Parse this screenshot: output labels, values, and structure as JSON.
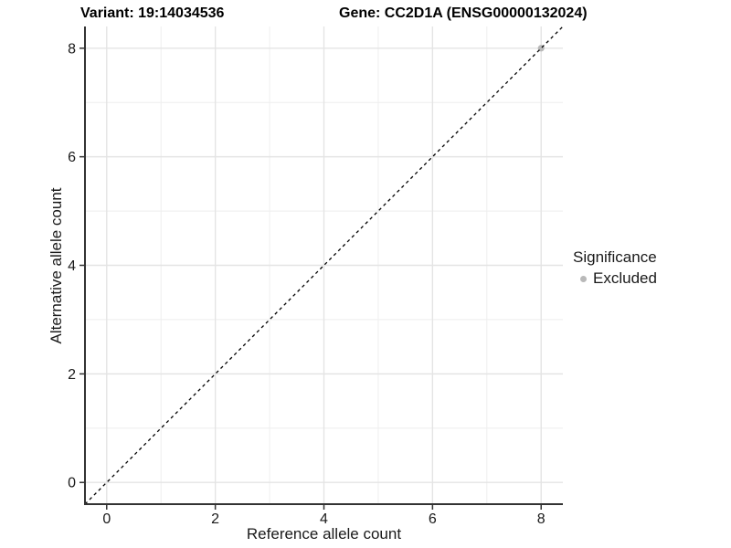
{
  "header": {
    "title_left": "Variant: 19:14034536",
    "title_right": "Gene: CC2D1A (ENSG00000132024)"
  },
  "legend": {
    "title": "Significance",
    "items": [
      {
        "label": "Excluded",
        "color": "#b9b9b9"
      }
    ]
  },
  "chart_data": {
    "type": "scatter",
    "title": "Variant: 19:14034536    Gene: CC2D1A (ENSG00000132024)",
    "xlabel": "Reference allele count",
    "ylabel": "Alternative allele count",
    "xlim": [
      -0.4,
      8.4
    ],
    "ylim": [
      -0.4,
      8.4
    ],
    "x_major_ticks": [
      0,
      2,
      4,
      6,
      8
    ],
    "y_major_ticks": [
      0,
      2,
      4,
      6,
      8
    ],
    "x_minor_gridlines": [
      1,
      3,
      5,
      7
    ],
    "y_minor_gridlines": [
      1,
      3,
      5,
      7
    ],
    "grid": true,
    "legend_position": "right",
    "series": [
      {
        "name": "Excluded",
        "color": "#b9b9b9",
        "points": [
          {
            "x": 8,
            "y": 8
          }
        ]
      }
    ],
    "reference_line": {
      "type": "identity",
      "slope": 1,
      "intercept": 0,
      "style": "dashed",
      "color": "#000000"
    },
    "colors": {
      "grid_major": "#e4e4e4",
      "grid_minor": "#eeeeee",
      "axis_line": "#333333",
      "tick_mark": "#333333",
      "tick_label": "#1a1a1a",
      "point": "#b9b9b9"
    }
  }
}
